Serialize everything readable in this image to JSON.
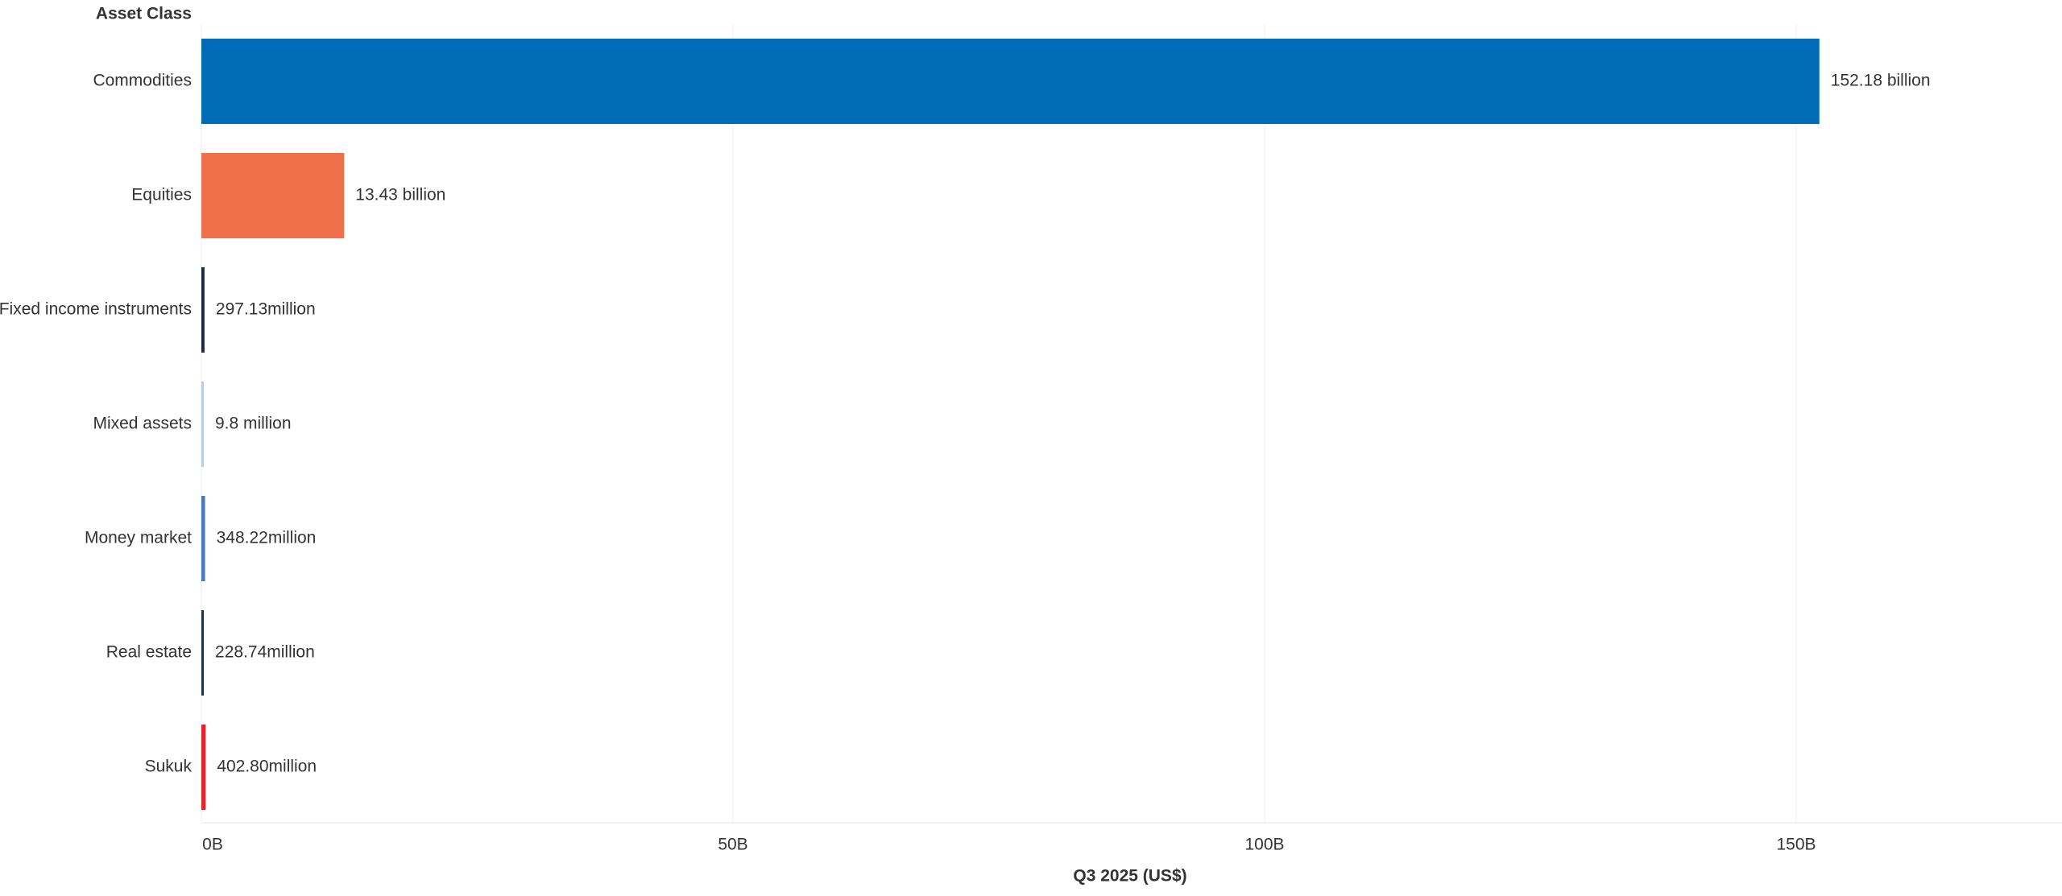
{
  "chart_data": {
    "type": "bar",
    "orientation": "horizontal",
    "y_axis_title": "Asset Class",
    "x_axis_title": "Q3 2025 (US$)",
    "categories": [
      "Commodities",
      "Equities",
      "Fixed income instruments",
      "Mixed assets",
      "Money market",
      "Real estate",
      "Sukuk"
    ],
    "values": [
      152180000000,
      13430000000,
      297130000,
      9800000,
      348220000,
      228740000,
      402800000
    ],
    "value_labels": [
      "152.18 billion",
      "13.43 billion",
      "297.13million",
      "9.8 million",
      "348.22million",
      "228.74million",
      "402.80million"
    ],
    "colors": [
      "#006cb8",
      "#f0704c",
      "#1b2a4a",
      "#b8cde8",
      "#4a7ab8",
      "#1e3350",
      "#e0262a"
    ],
    "xlim": [
      0,
      175000000000
    ],
    "xticks": [
      {
        "value": 0,
        "label": "0B"
      },
      {
        "value": 50000000000,
        "label": "50B"
      },
      {
        "value": 100000000000,
        "label": "100B"
      },
      {
        "value": 150000000000,
        "label": "150B"
      }
    ],
    "grid": true
  }
}
